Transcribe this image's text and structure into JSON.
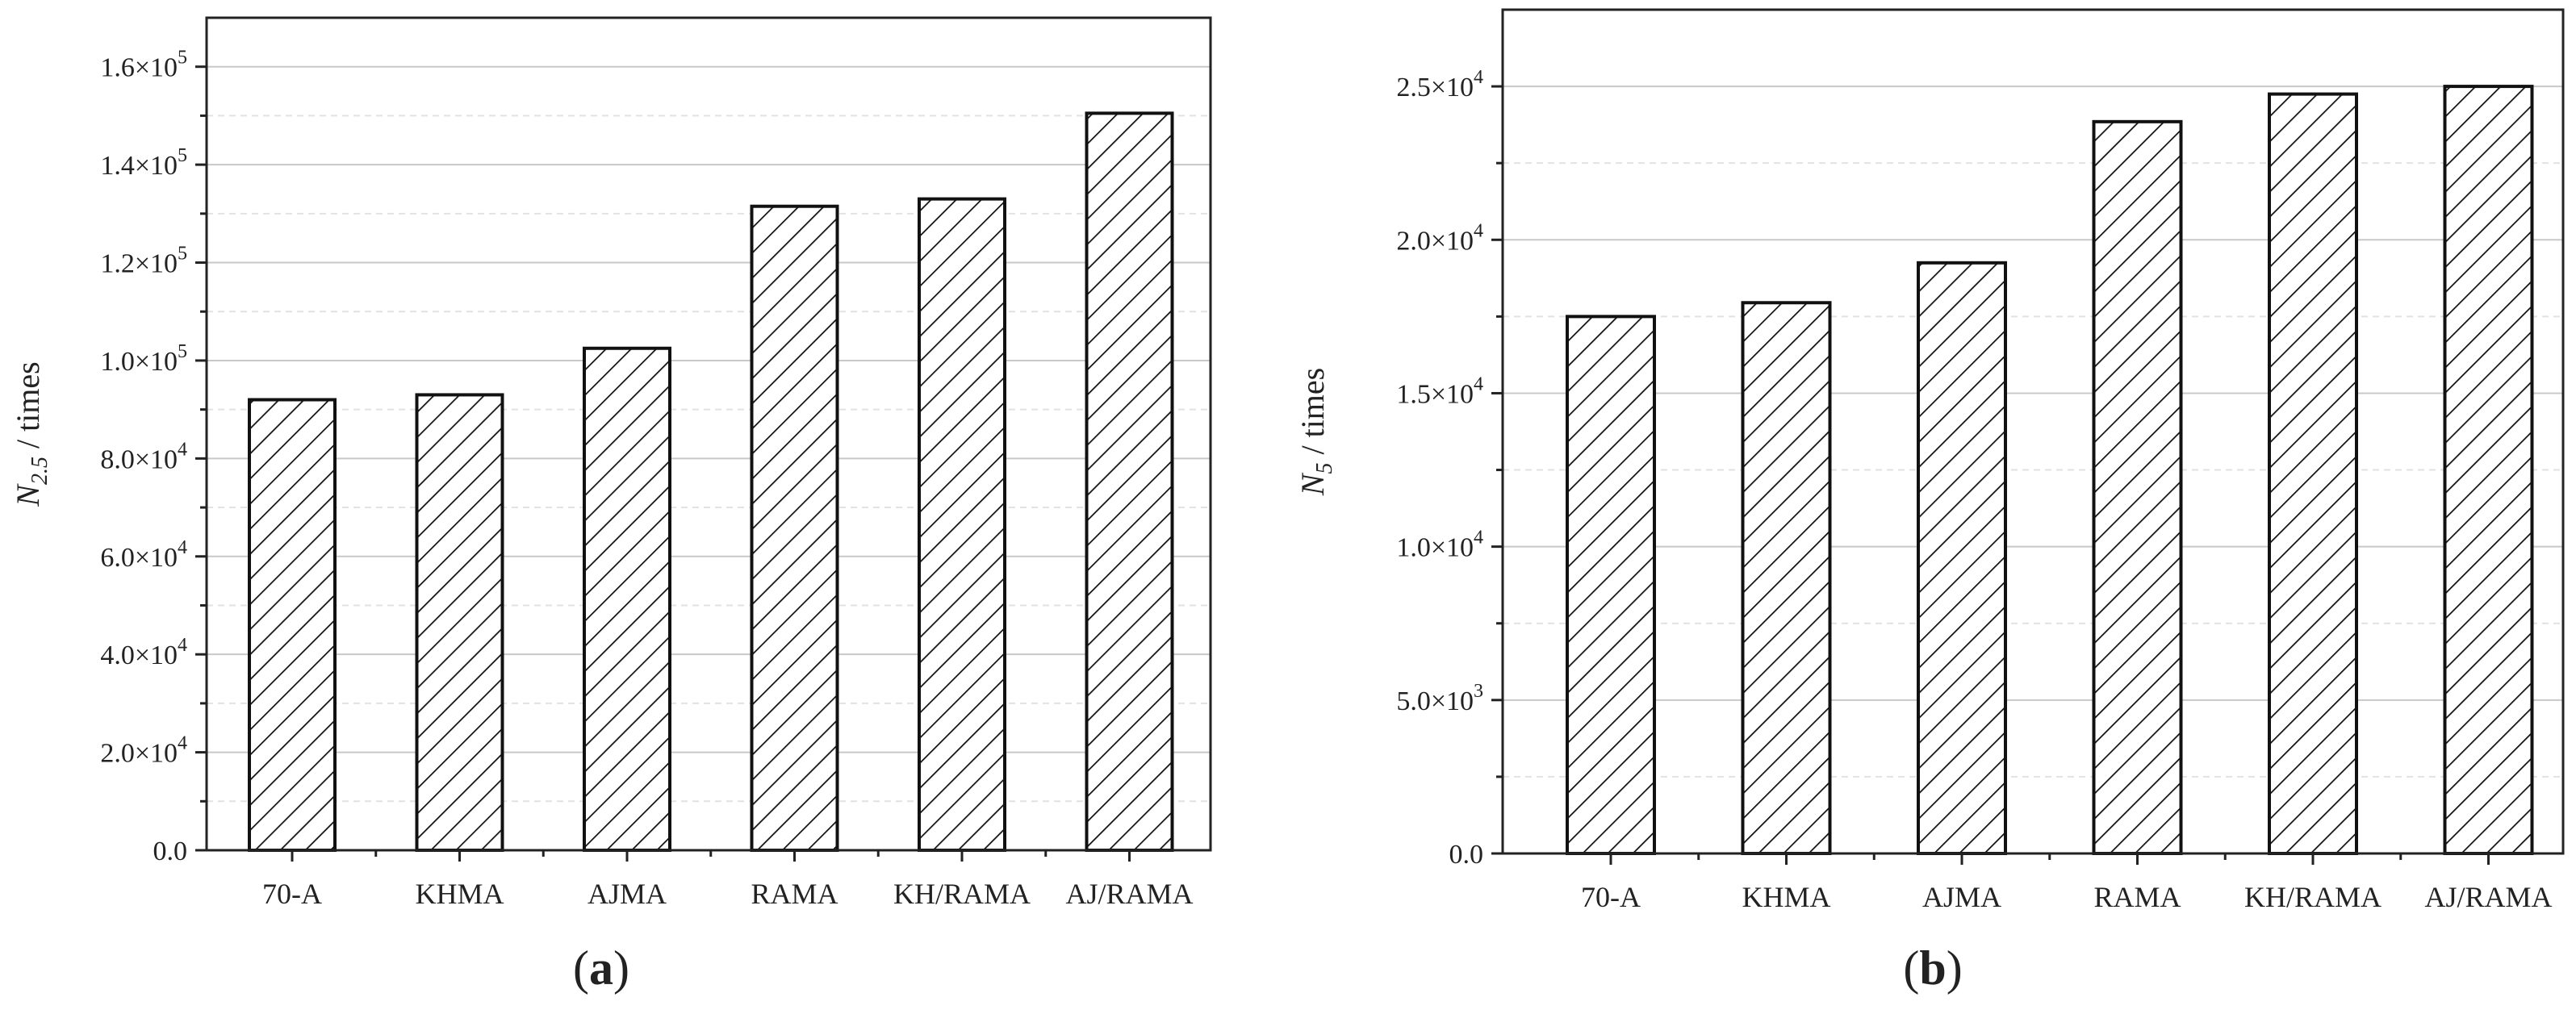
{
  "chart_data": [
    {
      "type": "bar",
      "panel_label": "a",
      "categories": [
        "70-A",
        "KHMA",
        "AJMA",
        "RAMA",
        "KH/RAMA",
        "AJ/RAMA"
      ],
      "values": [
        92000,
        93000,
        102500,
        131500,
        133000,
        150500
      ],
      "ylabel": {
        "symbol": "N",
        "sub": "2.5",
        "suffix": " / times"
      },
      "ylim": [
        0,
        160000
      ],
      "yticks": [
        {
          "value": 0,
          "mantissa": "0.0",
          "exp": ""
        },
        {
          "value": 20000,
          "mantissa": "2.0×10",
          "exp": "4"
        },
        {
          "value": 40000,
          "mantissa": "4.0×10",
          "exp": "4"
        },
        {
          "value": 60000,
          "mantissa": "6.0×10",
          "exp": "4"
        },
        {
          "value": 80000,
          "mantissa": "8.0×10",
          "exp": "4"
        },
        {
          "value": 100000,
          "mantissa": "1.0×10",
          "exp": "5"
        },
        {
          "value": 120000,
          "mantissa": "1.2×10",
          "exp": "5"
        },
        {
          "value": 140000,
          "mantissa": "1.4×10",
          "exp": "5"
        },
        {
          "value": 160000,
          "mantissa": "1.6×10",
          "exp": "5"
        }
      ],
      "grid": true,
      "bar_fill": "hatched"
    },
    {
      "type": "bar",
      "panel_label": "b",
      "categories": [
        "70-A",
        "KHMA",
        "AJMA",
        "RAMA",
        "KH/RAMA",
        "AJ/RAMA"
      ],
      "values": [
        17500,
        17950,
        19250,
        23850,
        24750,
        25000
      ],
      "ylabel": {
        "symbol": "N",
        "sub": "5",
        "suffix": " / times"
      },
      "ylim": [
        0,
        25000
      ],
      "yticks": [
        {
          "value": 0,
          "mantissa": "0.0",
          "exp": ""
        },
        {
          "value": 5000,
          "mantissa": "5.0×10",
          "exp": "3"
        },
        {
          "value": 10000,
          "mantissa": "1.0×10",
          "exp": "4"
        },
        {
          "value": 15000,
          "mantissa": "1.5×10",
          "exp": "4"
        },
        {
          "value": 20000,
          "mantissa": "2.0×10",
          "exp": "4"
        },
        {
          "value": 25000,
          "mantissa": "2.5×10",
          "exp": "4"
        }
      ],
      "grid": true,
      "bar_fill": "hatched"
    }
  ],
  "colors": {
    "axis": "#222222",
    "grid_major": "#c8c8c8",
    "grid_minor": "#e2e2e2",
    "bar_stroke": "#111111"
  }
}
